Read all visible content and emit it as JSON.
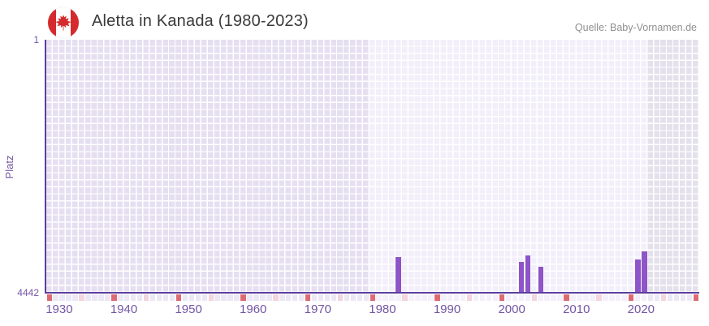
{
  "header": {
    "title": "Aletta in Kanada (1980-2023)",
    "flag_icon": "canada-flag-icon",
    "source": "Quelle: Baby-Vornamen.de"
  },
  "chart_data": {
    "type": "bar",
    "title": "Aletta in Kanada (1980-2023)",
    "xlabel": "",
    "ylabel": "Platz",
    "legend": "none",
    "grid": true,
    "y_axis": {
      "top_label": "1",
      "bottom_label": "4442",
      "min": 1,
      "max": 4442,
      "inverted": true
    },
    "x_axis": {
      "domain_start": 1928,
      "domain_end": 2029,
      "tick_years": [
        1930,
        1940,
        1950,
        1960,
        1970,
        1980,
        1990,
        2000,
        2010,
        2020
      ]
    },
    "series": [
      {
        "name": "Platz",
        "points": [
          {
            "year": 1982,
            "rank": 3820
          },
          {
            "year": 2001,
            "rank": 3900
          },
          {
            "year": 2002,
            "rank": 3790
          },
          {
            "year": 2004,
            "rank": 3980
          },
          {
            "year": 2019,
            "rank": 3860
          },
          {
            "year": 2020,
            "rank": 3710
          }
        ]
      }
    ],
    "highlight_range": {
      "from": 1978,
      "to": 2021
    },
    "timeline_strip": {
      "decade_mark_color_name": "red",
      "half_decade_mark_color_name": "pink",
      "mark_interval_years": 5
    },
    "colors": {
      "bar": "#8d55c7",
      "axis": "#5c3e9e",
      "tick_label": "#7456a4",
      "grid_cell_dark": "#e5dff1",
      "grid_cell_light": "#f2effa",
      "grid_cell_dark_right": "#e4e1ec",
      "grid_line": "#ffffff",
      "strip_red": "#dd6a72",
      "strip_pink": "#f2d5dd",
      "strip_cell_dark": "#ebe7f4",
      "strip_cell_light": "#f3f0fa",
      "title_text": "#3a3a3a",
      "source_text": "#8f8f8f",
      "flag_red": "#d52b2e"
    }
  }
}
